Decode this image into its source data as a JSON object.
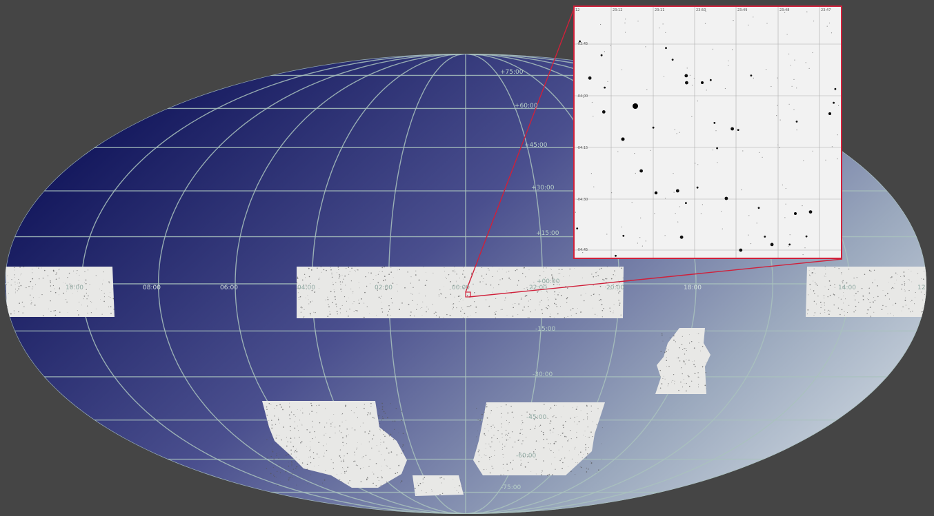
{
  "dec_labels": [
    "+75:00",
    "+60:00",
    "+45:00",
    "+30:00",
    "+15:00",
    "+00:00",
    "-15:00",
    "-30:00",
    "-45:00",
    "-60:00",
    "-75:00"
  ],
  "ra_labels": [
    "10:00",
    "08:00",
    "06:00",
    "04:00",
    "02:00",
    "00:00",
    "22:00",
    "20:00",
    "18:00",
    "14:00",
    "12"
  ],
  "inset": {
    "ra_ticks": [
      "12",
      "23:12",
      "23:11",
      "23:50",
      "23:49",
      "23:48",
      "23:47"
    ],
    "dec_ticks": [
      "-03:45",
      "-04:00",
      "-04:15",
      "-04:30",
      "-04:45"
    ]
  },
  "colors": {
    "background": "#454545",
    "sky_dark": "#0b0f55",
    "sky_light": "#c3ccd8",
    "grid": "#a9c2bd",
    "highlight": "#d0203a"
  }
}
